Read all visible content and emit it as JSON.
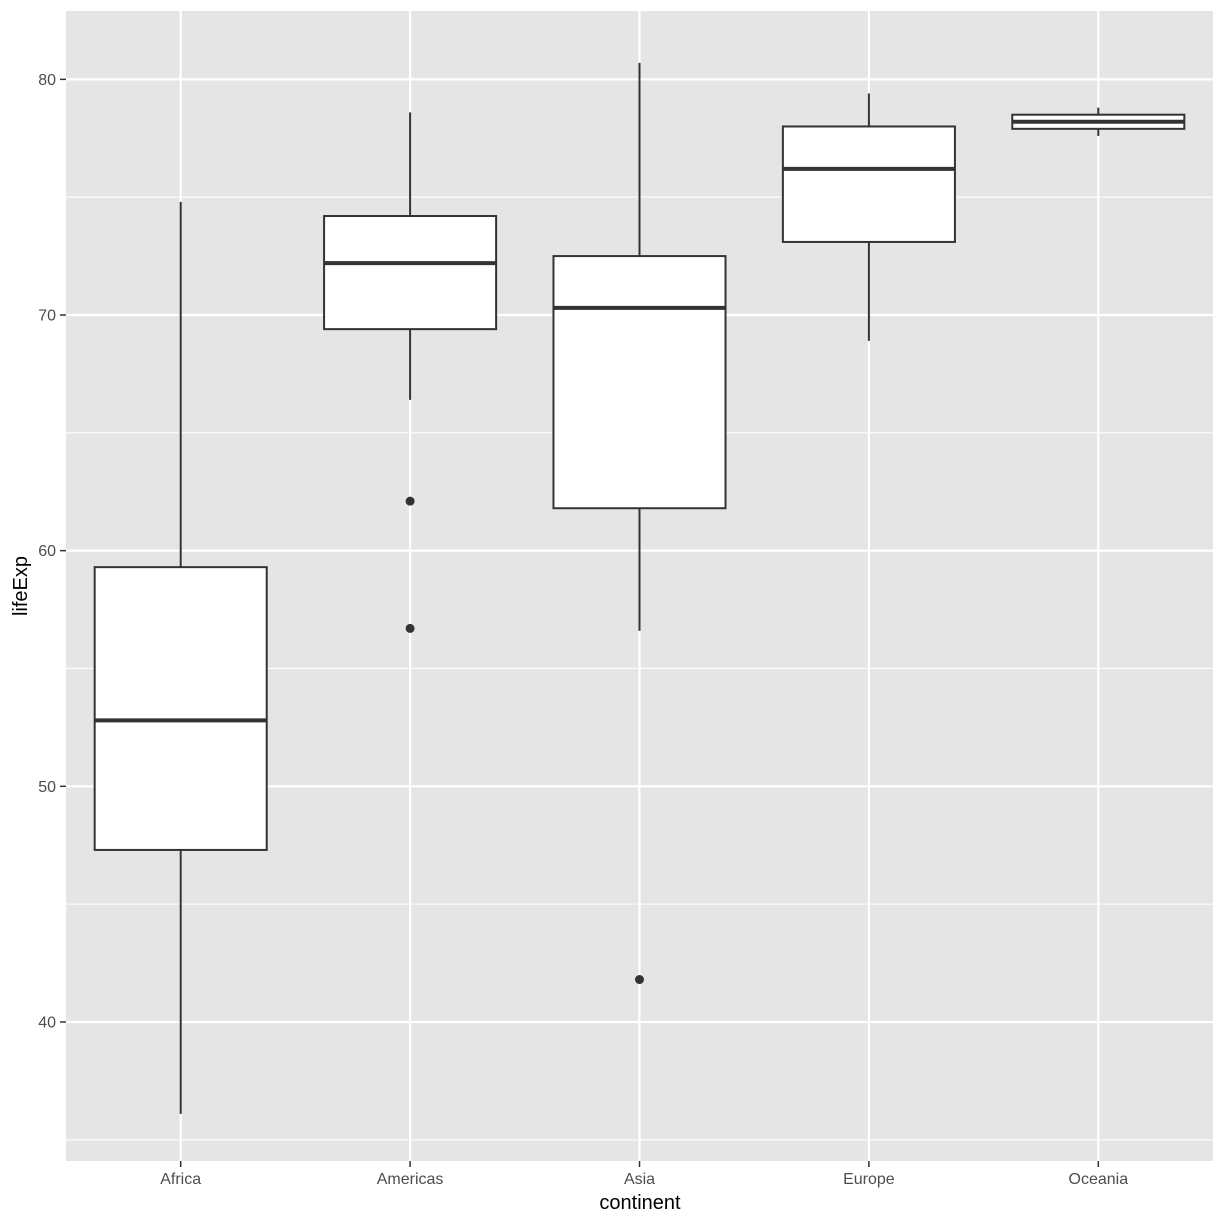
{
  "chart_data": {
    "type": "boxplot",
    "title": "",
    "xlabel": "continent",
    "ylabel": "lifeExp",
    "categories": [
      "Africa",
      "Americas",
      "Asia",
      "Europe",
      "Oceania"
    ],
    "ylim": [
      34.1,
      82.9
    ],
    "y_major_ticks": [
      40,
      50,
      60,
      70,
      80
    ],
    "y_minor_ticks": [
      35,
      45,
      55,
      65,
      75
    ],
    "grid": true,
    "legend": "none",
    "colors": {
      "panel_background": "#e5e5e5",
      "grid": "#ffffff",
      "box_fill": "#ffffff",
      "box_line": "#333333",
      "outlier": "#333333"
    },
    "boxes": [
      {
        "category": "Africa",
        "whisker_low": 36.1,
        "q1": 47.3,
        "median": 52.8,
        "q3": 59.3,
        "whisker_high": 74.8,
        "outliers": []
      },
      {
        "category": "Americas",
        "whisker_low": 66.4,
        "q1": 69.4,
        "median": 72.2,
        "q3": 74.2,
        "whisker_high": 78.6,
        "outliers": [
          62.1,
          56.7
        ]
      },
      {
        "category": "Asia",
        "whisker_low": 56.6,
        "q1": 61.8,
        "median": 70.3,
        "q3": 72.5,
        "whisker_high": 80.7,
        "outliers": [
          41.8
        ]
      },
      {
        "category": "Europe",
        "whisker_low": 68.9,
        "q1": 73.1,
        "median": 76.2,
        "q3": 78.0,
        "whisker_high": 79.4,
        "outliers": []
      },
      {
        "category": "Oceania",
        "whisker_low": 77.6,
        "q1": 77.9,
        "median": 78.2,
        "q3": 78.5,
        "whisker_high": 78.8,
        "outliers": []
      }
    ]
  }
}
